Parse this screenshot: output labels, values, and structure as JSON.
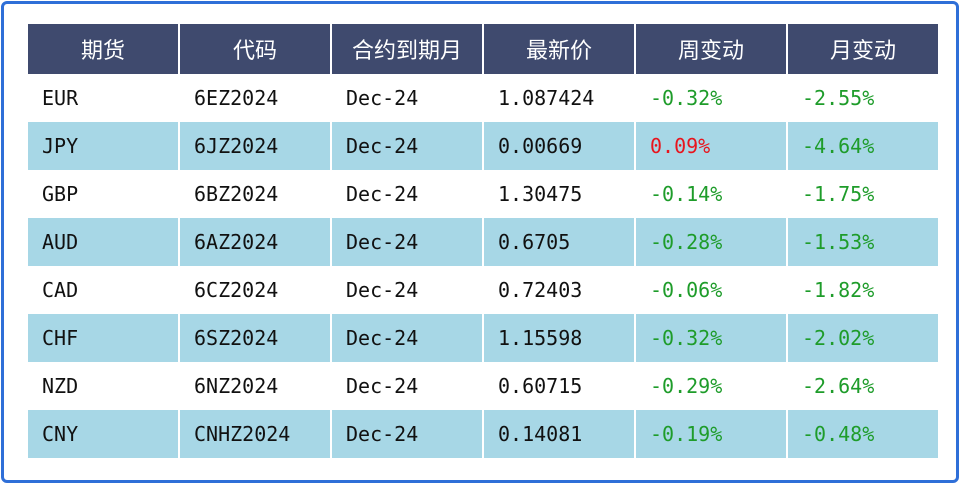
{
  "table": {
    "headers": [
      "期货",
      "代码",
      "合约到期月",
      "最新价",
      "周变动",
      "月变动"
    ],
    "rows": [
      {
        "symbol": "EUR",
        "code": "6EZ2024",
        "expiry": "Dec-24",
        "price": "1.087424",
        "weekly": "-0.32%",
        "monthly": "-2.55%"
      },
      {
        "symbol": "JPY",
        "code": "6JZ2024",
        "expiry": "Dec-24",
        "price": "0.00669",
        "weekly": "0.09%",
        "monthly": "-4.64%"
      },
      {
        "symbol": "GBP",
        "code": "6BZ2024",
        "expiry": "Dec-24",
        "price": "1.30475",
        "weekly": "-0.14%",
        "monthly": "-1.75%"
      },
      {
        "symbol": "AUD",
        "code": "6AZ2024",
        "expiry": "Dec-24",
        "price": "0.6705",
        "weekly": "-0.28%",
        "monthly": "-1.53%"
      },
      {
        "symbol": "CAD",
        "code": "6CZ2024",
        "expiry": "Dec-24",
        "price": "0.72403",
        "weekly": "-0.06%",
        "monthly": "-1.82%"
      },
      {
        "symbol": "CHF",
        "code": "6SZ2024",
        "expiry": "Dec-24",
        "price": "1.15598",
        "weekly": "-0.32%",
        "monthly": "-2.02%"
      },
      {
        "symbol": "NZD",
        "code": "6NZ2024",
        "expiry": "Dec-24",
        "price": "0.60715",
        "weekly": "-0.29%",
        "monthly": "-2.64%"
      },
      {
        "symbol": "CNY",
        "code": "CNHZ2024",
        "expiry": "Dec-24",
        "price": "0.14081",
        "weekly": "-0.19%",
        "monthly": "-0.48%"
      }
    ]
  },
  "colors": {
    "header_bg": "#3f4a6e",
    "row_shade": "#a7d7e6",
    "positive": "#e8141d",
    "negative": "#1e9c2a",
    "border": "#2f6fd8"
  }
}
